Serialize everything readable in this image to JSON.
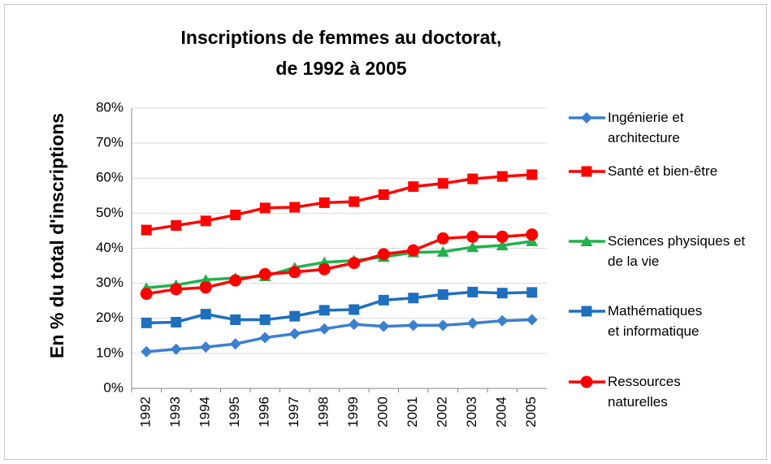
{
  "chart_data": {
    "type": "line",
    "title": [
      "Inscriptions de femmes au doctorat,",
      "de 1992 à 2005"
    ],
    "y_label": "En % du total d'inscriptions",
    "categories": [
      "1992",
      "1993",
      "1994",
      "1995",
      "1996",
      "1997",
      "1998",
      "1999",
      "2000",
      "2001",
      "2002",
      "2003",
      "2004",
      "2005"
    ],
    "ylim": [
      0,
      80
    ],
    "yticks": [
      {
        "value": 0,
        "label": "0%"
      },
      {
        "value": 10,
        "label": "10%"
      },
      {
        "value": 20,
        "label": "20%"
      },
      {
        "value": 30,
        "label": "30%"
      },
      {
        "value": 40,
        "label": "40%"
      },
      {
        "value": 50,
        "label": "50%"
      },
      {
        "value": 60,
        "label": "60%"
      },
      {
        "value": 70,
        "label": "70%"
      },
      {
        "value": 80,
        "label": "80%"
      }
    ],
    "grid": true,
    "legend": "right",
    "series": [
      {
        "name": "Ingénierie et architecture",
        "color": "#3b7fd0",
        "marker": "diamond",
        "values": [
          10.5,
          11.2,
          11.8,
          12.7,
          14.5,
          15.6,
          17.0,
          18.3,
          17.7,
          18.0,
          18.0,
          18.6,
          19.3,
          19.6
        ]
      },
      {
        "name": "Santé et bien-être",
        "color": "#ff0000",
        "marker": "square",
        "values": [
          45.2,
          46.5,
          47.8,
          49.5,
          51.5,
          51.7,
          53.0,
          53.3,
          55.3,
          57.6,
          58.5,
          59.8,
          60.5,
          61.0
        ]
      },
      {
        "name": "Sciences physiques et de la vie",
        "color": "#22b14c",
        "marker": "triangle",
        "values": [
          28.7,
          29.5,
          31.0,
          31.5,
          32.0,
          34.5,
          36.0,
          36.5,
          37.5,
          38.8,
          39.0,
          40.3,
          40.8,
          42.0
        ]
      },
      {
        "name": "Mathématiques et informatique",
        "color": "#1f6fbf",
        "marker": "square",
        "values": [
          18.7,
          18.9,
          21.2,
          19.6,
          19.6,
          20.6,
          22.3,
          22.5,
          25.2,
          25.8,
          26.8,
          27.5,
          27.2,
          27.4
        ]
      },
      {
        "name": "Ressources naturelles",
        "color": "#ff0000",
        "marker": "circle",
        "values": [
          27.0,
          28.3,
          28.8,
          30.8,
          32.6,
          33.2,
          34.0,
          35.8,
          38.3,
          39.4,
          42.8,
          43.3,
          43.3,
          43.9
        ]
      }
    ]
  }
}
